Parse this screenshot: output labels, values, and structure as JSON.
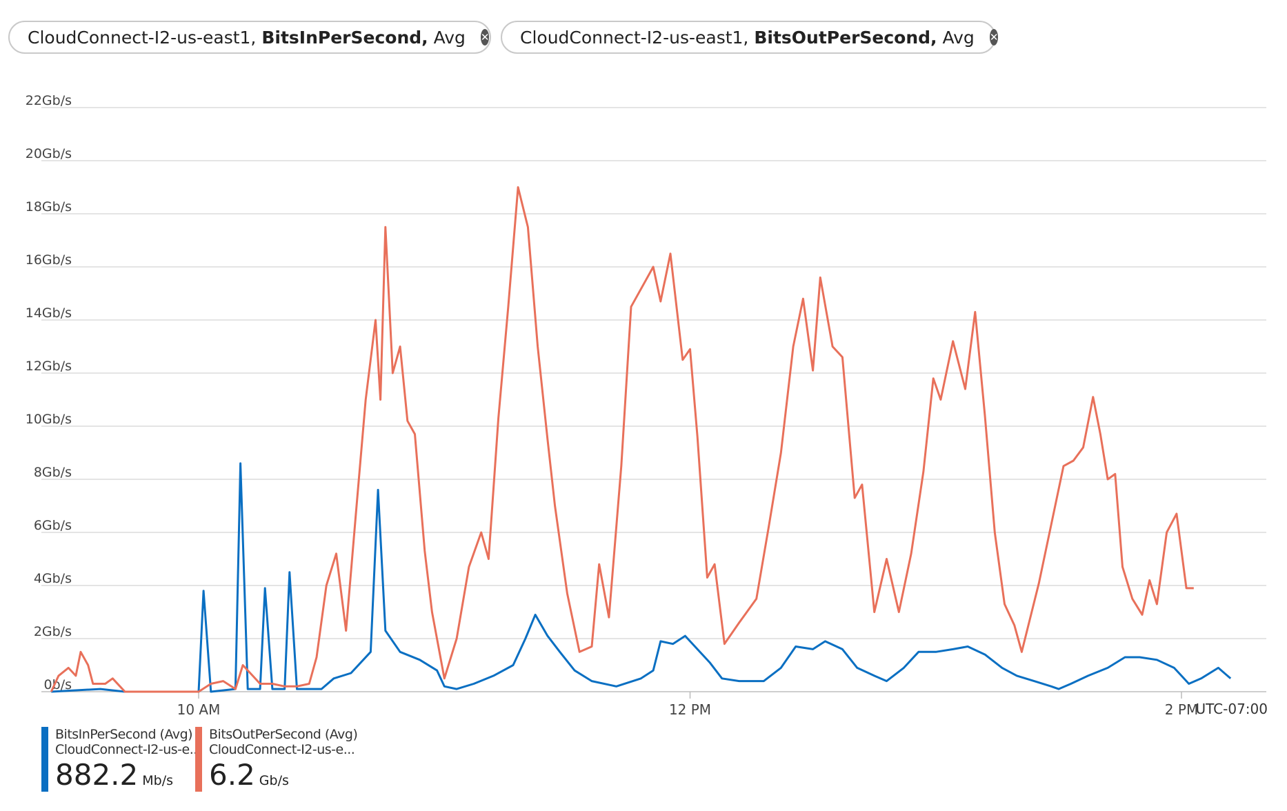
{
  "pills": [
    {
      "resource": "CloudConnect-I2-us-east1,",
      "metric": "BitsInPerSecond,",
      "agg": "Avg",
      "icon": "resource-triangle-icon",
      "close_icon": "close-icon"
    },
    {
      "resource": "CloudConnect-I2-us-east1,",
      "metric": "BitsOutPerSecond,",
      "agg": "Avg",
      "icon": "resource-triangle-icon",
      "close_icon": "close-icon"
    }
  ],
  "timezone": "UTC-07:00",
  "legend": [
    {
      "name": "BitsInPerSecond (Avg)",
      "resource": "CloudConnect-I2-us-e...",
      "value": "882.2",
      "unit": "Mb/s",
      "color": "#0a6fc2"
    },
    {
      "name": "BitsOutPerSecond (Avg)",
      "resource": "CloudConnect-I2-us-e...",
      "value": "6.2",
      "unit": "Gb/s",
      "color": "#e8705a"
    }
  ],
  "chart_data": {
    "type": "line",
    "ylim": [
      0,
      22
    ],
    "yticks": [
      0,
      2,
      4,
      6,
      8,
      10,
      12,
      14,
      16,
      18,
      20,
      22
    ],
    "ytick_labels": [
      "0b/s",
      "2Gb/s",
      "4Gb/s",
      "6Gb/s",
      "8Gb/s",
      "10Gb/s",
      "12Gb/s",
      "14Gb/s",
      "16Gb/s",
      "18Gb/s",
      "20Gb/s",
      "22Gb/s"
    ],
    "xlim_hours": [
      9.4,
      14.2
    ],
    "xticks_hours": [
      10,
      12,
      14
    ],
    "xtick_labels": [
      "10 AM",
      "12 PM",
      "2 PM"
    ],
    "grid": true,
    "series": [
      {
        "name": "BitsInPerSecond (Avg)",
        "color": "#0a6fc2",
        "points": [
          [
            9.4,
            0
          ],
          [
            9.6,
            0.1
          ],
          [
            9.7,
            0
          ],
          [
            10.0,
            0
          ],
          [
            10.02,
            3.8
          ],
          [
            10.05,
            0
          ],
          [
            10.15,
            0.1
          ],
          [
            10.17,
            8.6
          ],
          [
            10.2,
            0.1
          ],
          [
            10.25,
            0.1
          ],
          [
            10.27,
            3.9
          ],
          [
            10.3,
            0.1
          ],
          [
            10.35,
            0.1
          ],
          [
            10.37,
            4.5
          ],
          [
            10.4,
            0.1
          ],
          [
            10.5,
            0.1
          ],
          [
            10.55,
            0.5
          ],
          [
            10.62,
            0.7
          ],
          [
            10.7,
            1.5
          ],
          [
            10.73,
            7.6
          ],
          [
            10.76,
            2.3
          ],
          [
            10.82,
            1.5
          ],
          [
            10.9,
            1.2
          ],
          [
            10.97,
            0.8
          ],
          [
            11.0,
            0.2
          ],
          [
            11.05,
            0.1
          ],
          [
            11.12,
            0.3
          ],
          [
            11.2,
            0.6
          ],
          [
            11.28,
            1.0
          ],
          [
            11.33,
            2.0
          ],
          [
            11.37,
            2.9
          ],
          [
            11.42,
            2.1
          ],
          [
            11.47,
            1.5
          ],
          [
            11.53,
            0.8
          ],
          [
            11.6,
            0.4
          ],
          [
            11.7,
            0.2
          ],
          [
            11.8,
            0.5
          ],
          [
            11.85,
            0.8
          ],
          [
            11.88,
            1.9
          ],
          [
            11.93,
            1.8
          ],
          [
            11.98,
            2.1
          ],
          [
            12.03,
            1.6
          ],
          [
            12.08,
            1.1
          ],
          [
            12.13,
            0.5
          ],
          [
            12.2,
            0.4
          ],
          [
            12.3,
            0.4
          ],
          [
            12.37,
            0.9
          ],
          [
            12.43,
            1.7
          ],
          [
            12.5,
            1.6
          ],
          [
            12.55,
            1.9
          ],
          [
            12.62,
            1.6
          ],
          [
            12.68,
            0.9
          ],
          [
            12.75,
            0.6
          ],
          [
            12.8,
            0.4
          ],
          [
            12.87,
            0.9
          ],
          [
            12.93,
            1.5
          ],
          [
            13.0,
            1.5
          ],
          [
            13.07,
            1.6
          ],
          [
            13.13,
            1.7
          ],
          [
            13.2,
            1.4
          ],
          [
            13.27,
            0.9
          ],
          [
            13.33,
            0.6
          ],
          [
            13.4,
            0.4
          ],
          [
            13.47,
            0.2
          ],
          [
            13.5,
            0.1
          ],
          [
            13.55,
            0.3
          ],
          [
            13.62,
            0.6
          ],
          [
            13.7,
            0.9
          ],
          [
            13.77,
            1.3
          ],
          [
            13.83,
            1.3
          ],
          [
            13.9,
            1.2
          ],
          [
            13.97,
            0.9
          ],
          [
            14.0,
            0.6
          ],
          [
            14.03,
            0.3
          ],
          [
            14.08,
            0.5
          ],
          [
            14.15,
            0.9
          ],
          [
            14.2,
            0.5
          ]
        ]
      },
      {
        "name": "BitsOutPerSecond (Avg)",
        "color": "#e8705a",
        "points": [
          [
            9.4,
            0
          ],
          [
            9.43,
            0.6
          ],
          [
            9.47,
            0.9
          ],
          [
            9.5,
            0.6
          ],
          [
            9.52,
            1.5
          ],
          [
            9.55,
            1.0
          ],
          [
            9.57,
            0.3
          ],
          [
            9.62,
            0.3
          ],
          [
            9.65,
            0.5
          ],
          [
            9.68,
            0.2
          ],
          [
            9.7,
            0
          ],
          [
            10.0,
            0
          ],
          [
            10.05,
            0.3
          ],
          [
            10.1,
            0.4
          ],
          [
            10.15,
            0.1
          ],
          [
            10.18,
            1.0
          ],
          [
            10.22,
            0.6
          ],
          [
            10.25,
            0.3
          ],
          [
            10.3,
            0.3
          ],
          [
            10.35,
            0.2
          ],
          [
            10.4,
            0.2
          ],
          [
            10.45,
            0.3
          ],
          [
            10.48,
            1.3
          ],
          [
            10.52,
            4.0
          ],
          [
            10.56,
            5.2
          ],
          [
            10.6,
            2.3
          ],
          [
            10.64,
            6.7
          ],
          [
            10.68,
            11.0
          ],
          [
            10.72,
            14.0
          ],
          [
            10.74,
            11.0
          ],
          [
            10.76,
            17.5
          ],
          [
            10.79,
            12.0
          ],
          [
            10.82,
            13.0
          ],
          [
            10.85,
            10.2
          ],
          [
            10.88,
            9.7
          ],
          [
            10.92,
            5.3
          ],
          [
            10.95,
            3.0
          ],
          [
            11.0,
            0.5
          ],
          [
            11.05,
            2.0
          ],
          [
            11.1,
            4.7
          ],
          [
            11.15,
            6.0
          ],
          [
            11.18,
            5.0
          ],
          [
            11.22,
            10.3
          ],
          [
            11.26,
            14.5
          ],
          [
            11.3,
            19.0
          ],
          [
            11.34,
            17.5
          ],
          [
            11.38,
            13.0
          ],
          [
            11.42,
            9.5
          ],
          [
            11.45,
            7.0
          ],
          [
            11.5,
            3.7
          ],
          [
            11.55,
            1.5
          ],
          [
            11.6,
            1.7
          ],
          [
            11.63,
            4.8
          ],
          [
            11.67,
            2.8
          ],
          [
            11.72,
            8.5
          ],
          [
            11.76,
            14.5
          ],
          [
            11.82,
            15.5
          ],
          [
            11.85,
            16.0
          ],
          [
            11.88,
            14.7
          ],
          [
            11.92,
            16.5
          ],
          [
            11.97,
            12.5
          ],
          [
            12.0,
            12.9
          ],
          [
            12.03,
            9.6
          ],
          [
            12.07,
            4.3
          ],
          [
            12.1,
            4.8
          ],
          [
            12.14,
            1.8
          ],
          [
            12.2,
            2.6
          ],
          [
            12.27,
            3.5
          ],
          [
            12.32,
            6.2
          ],
          [
            12.37,
            9.0
          ],
          [
            12.42,
            13.0
          ],
          [
            12.46,
            14.8
          ],
          [
            12.5,
            12.1
          ],
          [
            12.53,
            15.6
          ],
          [
            12.58,
            13.0
          ],
          [
            12.62,
            12.6
          ],
          [
            12.67,
            7.3
          ],
          [
            12.7,
            7.8
          ],
          [
            12.75,
            3.0
          ],
          [
            12.8,
            5.0
          ],
          [
            12.85,
            3.0
          ],
          [
            12.9,
            5.2
          ],
          [
            12.95,
            8.3
          ],
          [
            12.99,
            11.8
          ],
          [
            13.02,
            11.0
          ],
          [
            13.07,
            13.2
          ],
          [
            13.12,
            11.4
          ],
          [
            13.16,
            14.3
          ],
          [
            13.2,
            10.4
          ],
          [
            13.24,
            6.0
          ],
          [
            13.28,
            3.3
          ],
          [
            13.32,
            2.5
          ],
          [
            13.35,
            1.5
          ],
          [
            13.42,
            4.1
          ],
          [
            13.47,
            6.3
          ],
          [
            13.52,
            8.5
          ],
          [
            13.56,
            8.7
          ],
          [
            13.6,
            9.2
          ],
          [
            13.64,
            11.1
          ],
          [
            13.67,
            9.7
          ],
          [
            13.7,
            8.0
          ],
          [
            13.73,
            8.2
          ],
          [
            13.76,
            4.7
          ],
          [
            13.8,
            3.5
          ],
          [
            13.84,
            2.9
          ],
          [
            13.87,
            4.2
          ],
          [
            13.9,
            3.3
          ],
          [
            13.94,
            6.0
          ],
          [
            13.98,
            6.7
          ],
          [
            14.0,
            5.3
          ],
          [
            14.02,
            3.9
          ],
          [
            14.05,
            3.9
          ]
        ]
      }
    ]
  }
}
